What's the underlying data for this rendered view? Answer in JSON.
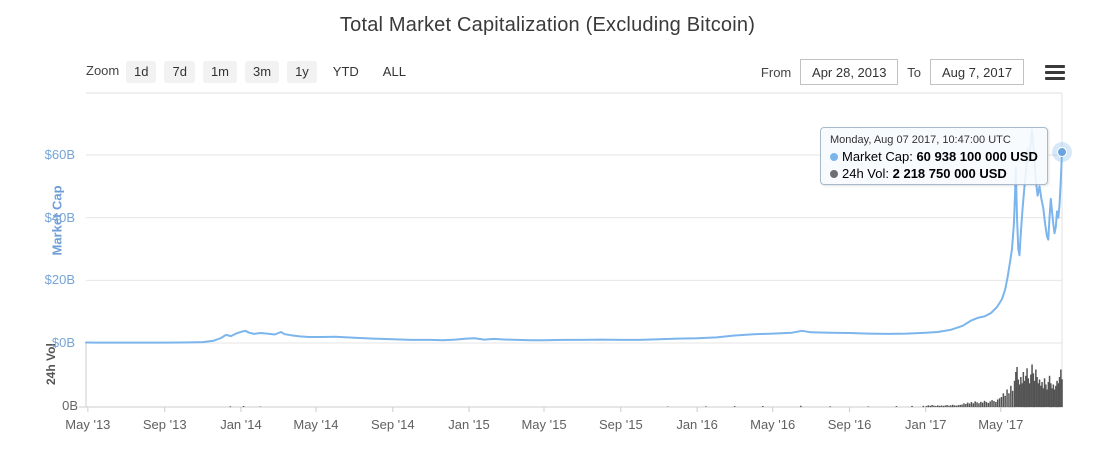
{
  "title": "Total Market Capitalization (Excluding Bitcoin)",
  "toolbar": {
    "zoom_label": "Zoom",
    "zoom_buttons": [
      {
        "label": "1d",
        "filled": true
      },
      {
        "label": "7d",
        "filled": true
      },
      {
        "label": "1m",
        "filled": true
      },
      {
        "label": "3m",
        "filled": true
      },
      {
        "label": "1y",
        "filled": true
      },
      {
        "label": "YTD",
        "filled": false
      },
      {
        "label": "ALL",
        "filled": false
      }
    ],
    "from_label": "From",
    "from_value": "Apr 28, 2013",
    "to_label": "To",
    "to_value": "Aug 7, 2017",
    "menu_icon": "hamburger-menu-icon"
  },
  "tooltip": {
    "header": "Monday, Aug 07 2017, 10:47:00 UTC",
    "rows": [
      {
        "label": "Market Cap:",
        "value": "60 938 100 000 USD",
        "color": "#7cb5ec"
      },
      {
        "label": "24h Vol:",
        "value": "2 218 750 000 USD",
        "color": "#6e6e6e"
      }
    ]
  },
  "colors": {
    "line": "#7cb5ec",
    "marker": "#6aa4de",
    "marker_halo": "rgba(124,181,236,0.3)",
    "volume": "#545454",
    "grid": "#e6e6e6",
    "frame": "#e0e0e0",
    "axis": "#cccccc"
  },
  "chart_data": {
    "type": "line",
    "title": "Total Market Capitalization (Excluding Bitcoin)",
    "x_range": [
      "2013-04-28",
      "2017-08-07"
    ],
    "x_ticks": [
      {
        "label": "May '13",
        "date": "2013-05-01"
      },
      {
        "label": "Sep '13",
        "date": "2013-09-01"
      },
      {
        "label": "Jan '14",
        "date": "2014-01-01"
      },
      {
        "label": "May '14",
        "date": "2014-05-01"
      },
      {
        "label": "Sep '14",
        "date": "2014-09-01"
      },
      {
        "label": "Jan '15",
        "date": "2015-01-01"
      },
      {
        "label": "May '15",
        "date": "2015-05-01"
      },
      {
        "label": "Sep '15",
        "date": "2015-09-01"
      },
      {
        "label": "Jan '16",
        "date": "2016-01-01"
      },
      {
        "label": "May '16",
        "date": "2016-05-01"
      },
      {
        "label": "Sep '16",
        "date": "2016-09-01"
      },
      {
        "label": "Jan '17",
        "date": "2017-01-01"
      },
      {
        "label": "May '17",
        "date": "2017-05-01"
      }
    ],
    "y_axis_market_cap": {
      "title": "Market Cap",
      "unit": "billion USD",
      "ticks": [
        {
          "label": "$0B",
          "value": 0
        },
        {
          "label": "$20B",
          "value": 20
        },
        {
          "label": "$40B",
          "value": 40
        },
        {
          "label": "$60B",
          "value": 60
        }
      ]
    },
    "y_axis_volume": {
      "title": "24h Vol",
      "unit": "billion USD",
      "ticks": [
        {
          "label": "0B",
          "value": 0
        }
      ]
    },
    "series": [
      {
        "name": "Market Cap",
        "type": "line",
        "color": "#7cb5ec",
        "points": [
          [
            "2013-04-28",
            0.16
          ],
          [
            "2013-05-15",
            0.14
          ],
          [
            "2013-06-10",
            0.13
          ],
          [
            "2013-07-05",
            0.12
          ],
          [
            "2013-08-01",
            0.13
          ],
          [
            "2013-09-01",
            0.14
          ],
          [
            "2013-10-01",
            0.17
          ],
          [
            "2013-11-01",
            0.3
          ],
          [
            "2013-11-18",
            0.7
          ],
          [
            "2013-11-30",
            1.6
          ],
          [
            "2013-12-08",
            2.6
          ],
          [
            "2013-12-16",
            2.2
          ],
          [
            "2013-12-24",
            3.0
          ],
          [
            "2014-01-02",
            3.6
          ],
          [
            "2014-01-08",
            3.9
          ],
          [
            "2014-01-14",
            3.3
          ],
          [
            "2014-01-22",
            2.9
          ],
          [
            "2014-02-01",
            3.2
          ],
          [
            "2014-02-12",
            3.0
          ],
          [
            "2014-02-24",
            2.7
          ],
          [
            "2014-03-06",
            3.5
          ],
          [
            "2014-03-12",
            2.8
          ],
          [
            "2014-03-22",
            2.5
          ],
          [
            "2014-04-05",
            2.1
          ],
          [
            "2014-04-20",
            1.9
          ],
          [
            "2014-05-10",
            1.9
          ],
          [
            "2014-06-01",
            2.0
          ],
          [
            "2014-06-20",
            1.8
          ],
          [
            "2014-07-10",
            1.6
          ],
          [
            "2014-08-01",
            1.4
          ],
          [
            "2014-09-01",
            1.2
          ],
          [
            "2014-10-01",
            1.0
          ],
          [
            "2014-11-01",
            1.0
          ],
          [
            "2014-11-20",
            0.9
          ],
          [
            "2014-12-10",
            1.1
          ],
          [
            "2014-12-28",
            1.4
          ],
          [
            "2015-01-10",
            1.5
          ],
          [
            "2015-01-25",
            1.1
          ],
          [
            "2015-02-10",
            1.3
          ],
          [
            "2015-03-01",
            1.1
          ],
          [
            "2015-03-20",
            1.0
          ],
          [
            "2015-04-10",
            0.9
          ],
          [
            "2015-05-01",
            0.9
          ],
          [
            "2015-06-01",
            1.0
          ],
          [
            "2015-07-01",
            1.0
          ],
          [
            "2015-08-01",
            1.1
          ],
          [
            "2015-09-01",
            1.0
          ],
          [
            "2015-10-01",
            1.0
          ],
          [
            "2015-11-01",
            1.2
          ],
          [
            "2015-12-01",
            1.4
          ],
          [
            "2016-01-01",
            1.5
          ],
          [
            "2016-02-01",
            1.8
          ],
          [
            "2016-03-01",
            2.4
          ],
          [
            "2016-04-01",
            2.8
          ],
          [
            "2016-05-01",
            3.0
          ],
          [
            "2016-06-01",
            3.3
          ],
          [
            "2016-06-17",
            3.9
          ],
          [
            "2016-07-01",
            3.4
          ],
          [
            "2016-08-01",
            3.3
          ],
          [
            "2016-09-01",
            3.2
          ],
          [
            "2016-10-01",
            3.0
          ],
          [
            "2016-11-01",
            2.9
          ],
          [
            "2016-12-01",
            3.0
          ],
          [
            "2017-01-01",
            3.3
          ],
          [
            "2017-01-20",
            3.5
          ],
          [
            "2017-02-10",
            4.2
          ],
          [
            "2017-03-01",
            5.5
          ],
          [
            "2017-03-15",
            7.2
          ],
          [
            "2017-03-25",
            8.0
          ],
          [
            "2017-04-05",
            8.5
          ],
          [
            "2017-04-15",
            9.5
          ],
          [
            "2017-04-25",
            11.5
          ],
          [
            "2017-05-03",
            14
          ],
          [
            "2017-05-08",
            17
          ],
          [
            "2017-05-12",
            21
          ],
          [
            "2017-05-16",
            26
          ],
          [
            "2017-05-19",
            30
          ],
          [
            "2017-05-22",
            38
          ],
          [
            "2017-05-24",
            48
          ],
          [
            "2017-05-25",
            56
          ],
          [
            "2017-05-27",
            40
          ],
          [
            "2017-05-29",
            30
          ],
          [
            "2017-05-31",
            28
          ],
          [
            "2017-06-02",
            35
          ],
          [
            "2017-06-05",
            43
          ],
          [
            "2017-06-08",
            50
          ],
          [
            "2017-06-11",
            56
          ],
          [
            "2017-06-13",
            62
          ],
          [
            "2017-06-15",
            58
          ],
          [
            "2017-06-18",
            64
          ],
          [
            "2017-06-20",
            68
          ],
          [
            "2017-06-23",
            61
          ],
          [
            "2017-06-26",
            52
          ],
          [
            "2017-06-29",
            47
          ],
          [
            "2017-07-02",
            50
          ],
          [
            "2017-07-05",
            46
          ],
          [
            "2017-07-08",
            43
          ],
          [
            "2017-07-11",
            38
          ],
          [
            "2017-07-14",
            34
          ],
          [
            "2017-07-16",
            33
          ],
          [
            "2017-07-18",
            40
          ],
          [
            "2017-07-20",
            46
          ],
          [
            "2017-07-22",
            42
          ],
          [
            "2017-07-24",
            38
          ],
          [
            "2017-07-26",
            35
          ],
          [
            "2017-07-28",
            37
          ],
          [
            "2017-07-30",
            42
          ],
          [
            "2017-08-01",
            40
          ],
          [
            "2017-08-03",
            44
          ],
          [
            "2017-08-05",
            52
          ],
          [
            "2017-08-07",
            60.9381
          ]
        ]
      },
      {
        "name": "24h Vol",
        "type": "column",
        "color": "#545454",
        "points": [
          [
            "2013-06-01",
            0.01
          ],
          [
            "2013-09-01",
            0.01
          ],
          [
            "2013-12-15",
            0.06
          ],
          [
            "2014-01-05",
            0.08
          ],
          [
            "2014-02-01",
            0.04
          ],
          [
            "2014-04-01",
            0.03
          ],
          [
            "2014-07-01",
            0.02
          ],
          [
            "2014-10-01",
            0.015
          ],
          [
            "2015-01-10",
            0.03
          ],
          [
            "2015-04-01",
            0.02
          ],
          [
            "2015-07-01",
            0.02
          ],
          [
            "2015-10-01",
            0.025
          ],
          [
            "2015-11-15",
            0.04
          ],
          [
            "2016-01-15",
            0.05
          ],
          [
            "2016-03-01",
            0.07
          ],
          [
            "2016-04-15",
            0.08
          ],
          [
            "2016-06-15",
            0.1
          ],
          [
            "2016-08-01",
            0.06
          ],
          [
            "2016-10-01",
            0.05
          ],
          [
            "2016-11-15",
            0.07
          ],
          [
            "2016-12-10",
            0.09
          ],
          [
            "2016-12-28",
            0.1
          ],
          [
            "2017-01-02",
            0.09
          ],
          [
            "2017-01-05",
            0.14
          ],
          [
            "2017-01-08",
            0.1
          ],
          [
            "2017-01-11",
            0.16
          ],
          [
            "2017-01-14",
            0.11
          ],
          [
            "2017-01-17",
            0.09
          ],
          [
            "2017-01-20",
            0.13
          ],
          [
            "2017-01-23",
            0.1
          ],
          [
            "2017-01-26",
            0.12
          ],
          [
            "2017-01-29",
            0.1
          ],
          [
            "2017-02-01",
            0.12
          ],
          [
            "2017-02-04",
            0.16
          ],
          [
            "2017-02-07",
            0.11
          ],
          [
            "2017-02-10",
            0.14
          ],
          [
            "2017-02-13",
            0.18
          ],
          [
            "2017-02-16",
            0.13
          ],
          [
            "2017-02-19",
            0.11
          ],
          [
            "2017-02-22",
            0.15
          ],
          [
            "2017-02-25",
            0.17
          ],
          [
            "2017-02-28",
            0.2
          ],
          [
            "2017-03-03",
            0.3
          ],
          [
            "2017-03-06",
            0.24
          ],
          [
            "2017-03-09",
            0.35
          ],
          [
            "2017-03-12",
            0.28
          ],
          [
            "2017-03-15",
            0.4
          ],
          [
            "2017-03-18",
            0.3
          ],
          [
            "2017-03-21",
            0.45
          ],
          [
            "2017-03-24",
            0.38
          ],
          [
            "2017-03-27",
            0.3
          ],
          [
            "2017-03-30",
            0.42
          ],
          [
            "2017-04-02",
            0.35
          ],
          [
            "2017-04-05",
            0.5
          ],
          [
            "2017-04-08",
            0.4
          ],
          [
            "2017-04-11",
            0.32
          ],
          [
            "2017-04-14",
            0.45
          ],
          [
            "2017-04-17",
            0.55
          ],
          [
            "2017-04-20",
            0.48
          ],
          [
            "2017-04-23",
            0.4
          ],
          [
            "2017-04-26",
            0.6
          ],
          [
            "2017-04-29",
            0.7
          ],
          [
            "2017-05-02",
            0.8
          ],
          [
            "2017-05-05",
            1.1
          ],
          [
            "2017-05-08",
            0.9
          ],
          [
            "2017-05-11",
            1.4
          ],
          [
            "2017-05-14",
            1.1
          ],
          [
            "2017-05-17",
            1.7
          ],
          [
            "2017-05-20",
            1.3
          ],
          [
            "2017-05-23",
            2.1
          ],
          [
            "2017-05-25",
            2.8
          ],
          [
            "2017-05-27",
            3.2
          ],
          [
            "2017-05-29",
            2.2
          ],
          [
            "2017-05-31",
            1.8
          ],
          [
            "2017-06-02",
            2.4
          ],
          [
            "2017-06-04",
            1.9
          ],
          [
            "2017-06-06",
            2.8
          ],
          [
            "2017-06-08",
            2.1
          ],
          [
            "2017-06-10",
            2.5
          ],
          [
            "2017-06-12",
            3.1
          ],
          [
            "2017-06-14",
            2.3
          ],
          [
            "2017-06-16",
            1.9
          ],
          [
            "2017-06-18",
            2.6
          ],
          [
            "2017-06-20",
            3.4
          ],
          [
            "2017-06-22",
            2.7
          ],
          [
            "2017-06-24",
            2.1
          ],
          [
            "2017-06-26",
            3.0
          ],
          [
            "2017-06-28",
            2.4
          ],
          [
            "2017-06-30",
            1.9
          ],
          [
            "2017-07-02",
            2.2
          ],
          [
            "2017-07-04",
            1.7
          ],
          [
            "2017-07-06",
            2.0
          ],
          [
            "2017-07-08",
            1.5
          ],
          [
            "2017-07-10",
            2.3
          ],
          [
            "2017-07-12",
            1.8
          ],
          [
            "2017-07-14",
            1.4
          ],
          [
            "2017-07-16",
            2.0
          ],
          [
            "2017-07-18",
            2.5
          ],
          [
            "2017-07-20",
            1.9
          ],
          [
            "2017-07-22",
            1.5
          ],
          [
            "2017-07-24",
            1.8
          ],
          [
            "2017-07-26",
            1.4
          ],
          [
            "2017-07-28",
            1.7
          ],
          [
            "2017-07-30",
            2.1
          ],
          [
            "2017-08-01",
            1.9
          ],
          [
            "2017-08-03",
            2.4
          ],
          [
            "2017-08-05",
            3.0
          ],
          [
            "2017-08-07",
            2.22
          ]
        ]
      }
    ],
    "selected_point": {
      "date": "2017-08-07 10:47:00 UTC",
      "market_cap_usd": "60 938 100 000",
      "volume_24h_usd": "2 218 750 000"
    }
  }
}
